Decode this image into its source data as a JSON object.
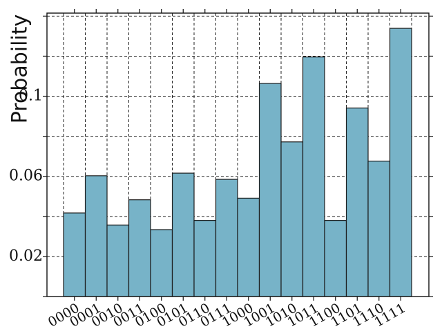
{
  "chart_data": {
    "type": "bar",
    "title": "",
    "xlabel": "",
    "ylabel": "Probability",
    "categories": [
      "0000",
      "0001",
      "0010",
      "0011",
      "0100",
      "0101",
      "0110",
      "0111",
      "1000",
      "1001",
      "1010",
      "1011",
      "1100",
      "1101",
      "1110",
      "1111"
    ],
    "values": [
      0.0417,
      0.0603,
      0.0357,
      0.0483,
      0.0334,
      0.0616,
      0.038,
      0.0585,
      0.0491,
      0.1064,
      0.0772,
      0.1196,
      0.038,
      0.0941,
      0.0676,
      0.1339
    ],
    "ylim": [
      0.0,
      0.1415
    ],
    "yticks_major": [
      0.02,
      0.06,
      0.1
    ],
    "yticks_minor": [
      0.0,
      0.04,
      0.08,
      0.12,
      0.14
    ],
    "grid": true,
    "bar_color": "#77b3c8"
  }
}
